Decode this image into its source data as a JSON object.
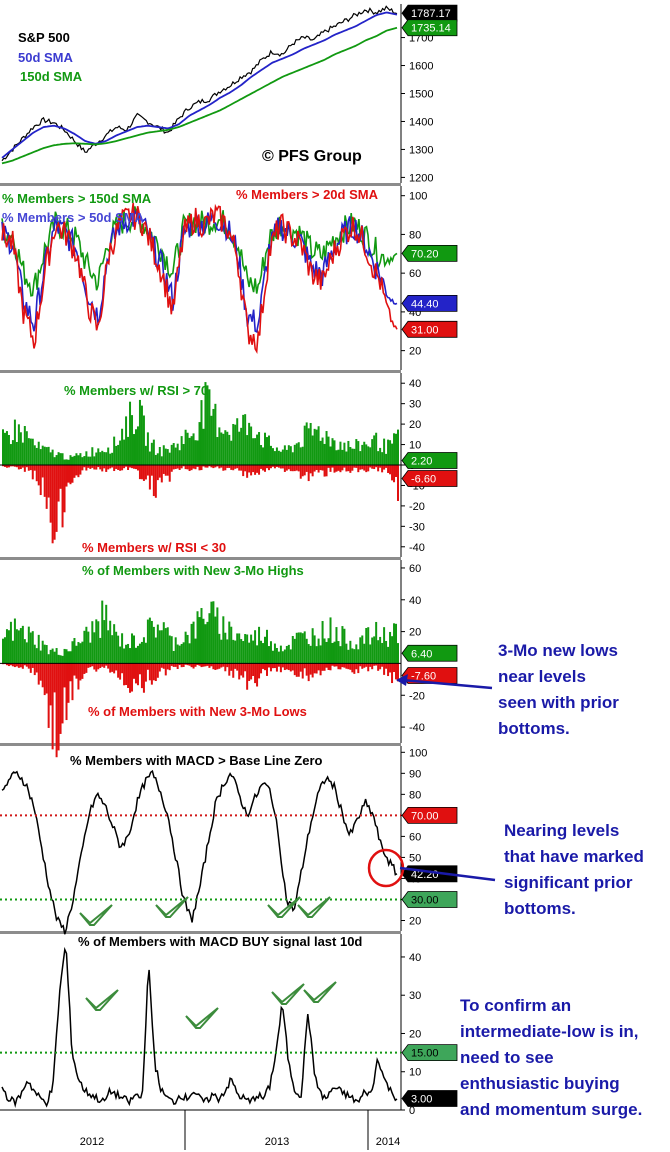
{
  "watermark": "© PFS Group",
  "side_notes": [
    {
      "text": "3-Mo new lows\nnear levels\nseen with prior\nbottoms."
    },
    {
      "text": "Nearing levels\nthat have marked\nsignificant prior\nbottoms."
    },
    {
      "text": "To confirm an\nintermediate-low is in,\nneed to see\nenthusiastic buying\nand momentum surge."
    }
  ],
  "x_axis": {
    "labels": [
      "2012",
      "2013",
      "2014"
    ]
  },
  "chart_data": [
    {
      "type": "line",
      "title": "S&P 500",
      "yticks": [
        1200,
        1300,
        1400,
        1500,
        1600,
        1700
      ],
      "ylim": [
        1180,
        1820
      ],
      "series": [
        {
          "name": "S&P 500",
          "color": "#000000",
          "values": [
            1260,
            1300,
            1340,
            1380,
            1405,
            1395,
            1370,
            1330,
            1290,
            1320,
            1350,
            1380,
            1370,
            1420,
            1400,
            1380,
            1360,
            1410,
            1450,
            1470,
            1480,
            1510,
            1530,
            1560,
            1580,
            1620,
            1650,
            1640,
            1680,
            1700,
            1690,
            1720,
            1740,
            1760,
            1780,
            1800,
            1790,
            1805,
            1787
          ],
          "last_label": "1787.17"
        },
        {
          "name": "50d SMA",
          "color": "#2323c8",
          "values": [
            1270,
            1300,
            1330,
            1360,
            1380,
            1385,
            1375,
            1355,
            1330,
            1320,
            1330,
            1350,
            1365,
            1380,
            1385,
            1380,
            1375,
            1390,
            1420,
            1440,
            1460,
            1485,
            1505,
            1530,
            1560,
            1585,
            1610,
            1625,
            1640,
            1660,
            1675,
            1690,
            1710,
            1725,
            1740,
            1760,
            1780,
            1790,
            1782
          ],
          "last_label": "1780"
        },
        {
          "name": "150d SMA",
          "color": "#119911",
          "values": [
            1250,
            1260,
            1275,
            1290,
            1305,
            1315,
            1320,
            1322,
            1320,
            1318,
            1322,
            1330,
            1340,
            1350,
            1360,
            1365,
            1370,
            1380,
            1395,
            1410,
            1425,
            1440,
            1460,
            1480,
            1500,
            1520,
            1540,
            1560,
            1575,
            1590,
            1605,
            1620,
            1640,
            1655,
            1670,
            1690,
            1705,
            1725,
            1735
          ],
          "last_label": "1735.14"
        }
      ]
    },
    {
      "type": "line",
      "yticks": [
        20,
        40,
        60,
        80,
        100
      ],
      "ylim": [
        10,
        105
      ],
      "series": [
        {
          "name": "% Members > 150d SMA",
          "color": "#119911",
          "last_label": "70.20",
          "last_value": 70.2
        },
        {
          "name": "% Members > 50d SMA",
          "color": "#2323c8",
          "last_label": "44.40",
          "last_value": 44.4
        },
        {
          "name": "% Members > 20d SMA",
          "color": "#e01010",
          "last_label": "31.00",
          "last_value": 31.0
        }
      ]
    },
    {
      "type": "area",
      "yticks": [
        40,
        30,
        20,
        10,
        0,
        -10,
        -20,
        -30,
        -40
      ],
      "ylim": [
        -45,
        45
      ],
      "series": [
        {
          "name": "% Members w/ RSI > 70",
          "color": "#119911",
          "last_label": "2.20",
          "last_value": 2.2
        },
        {
          "name": "% Members w/ RSI < 30",
          "color": "#e01010",
          "last_label": "-6.60",
          "last_value": -6.6
        }
      ]
    },
    {
      "type": "area",
      "yticks": [
        60,
        40,
        20,
        -20,
        -40
      ],
      "ylim": [
        -50,
        65
      ],
      "series": [
        {
          "name": "% of Members with New 3-Mo Highs",
          "color": "#119911",
          "last_label": "6.40",
          "last_value": 6.4
        },
        {
          "name": "% of Members with New 3-Mo Lows",
          "color": "#e01010",
          "last_label": "-7.60",
          "last_value": -7.6
        }
      ]
    },
    {
      "type": "line",
      "title": "% Members with MACD > Base Line Zero",
      "yticks": [
        100,
        90,
        80,
        70,
        60,
        50,
        40,
        30,
        20
      ],
      "ylim": [
        15,
        103
      ],
      "reference_lines": [
        {
          "value": 70,
          "color": "#d01818",
          "label": "70.00"
        },
        {
          "value": 30,
          "color": "#119911",
          "label": "30.00"
        }
      ],
      "series": [
        {
          "name": "% Members with MACD > Base Line Zero",
          "color": "#000000",
          "last_label": "42.20",
          "values": [
            80,
            88,
            90,
            85,
            75,
            55,
            35,
            20,
            15,
            30,
            50,
            70,
            80,
            75,
            65,
            55,
            60,
            75,
            85,
            90,
            82,
            70,
            50,
            30,
            20,
            35,
            55,
            75,
            85,
            90,
            80,
            70,
            78,
            85,
            82,
            60,
            30,
            25,
            45,
            65,
            80,
            88,
            84,
            72,
            60,
            68,
            76,
            70,
            55,
            48,
            42
          ]
        }
      ]
    },
    {
      "type": "line",
      "title": "% of Members with MACD BUY signal last 10d",
      "yticks": [
        40,
        30,
        20,
        10,
        0
      ],
      "ylim": [
        0,
        46
      ],
      "reference_lines": [
        {
          "value": 15,
          "color": "#119911",
          "label": "15.00"
        }
      ],
      "series": [
        {
          "name": "% of Members with MACD BUY signal last 10d",
          "color": "#000000",
          "last_label": "3.00",
          "values": [
            6,
            3,
            2,
            4,
            8,
            5,
            3,
            2,
            6,
            30,
            44,
            15,
            8,
            5,
            4,
            3,
            2,
            5,
            4,
            3,
            2,
            4,
            3,
            38,
            12,
            5,
            3,
            2,
            4,
            3,
            5,
            3,
            2,
            4,
            3,
            5,
            8,
            4,
            3,
            2,
            4,
            3,
            6,
            15,
            28,
            12,
            5,
            4,
            26,
            10,
            4,
            3,
            6,
            5,
            4,
            3,
            2,
            5,
            4,
            14,
            8,
            5,
            3
          ]
        }
      ]
    }
  ]
}
